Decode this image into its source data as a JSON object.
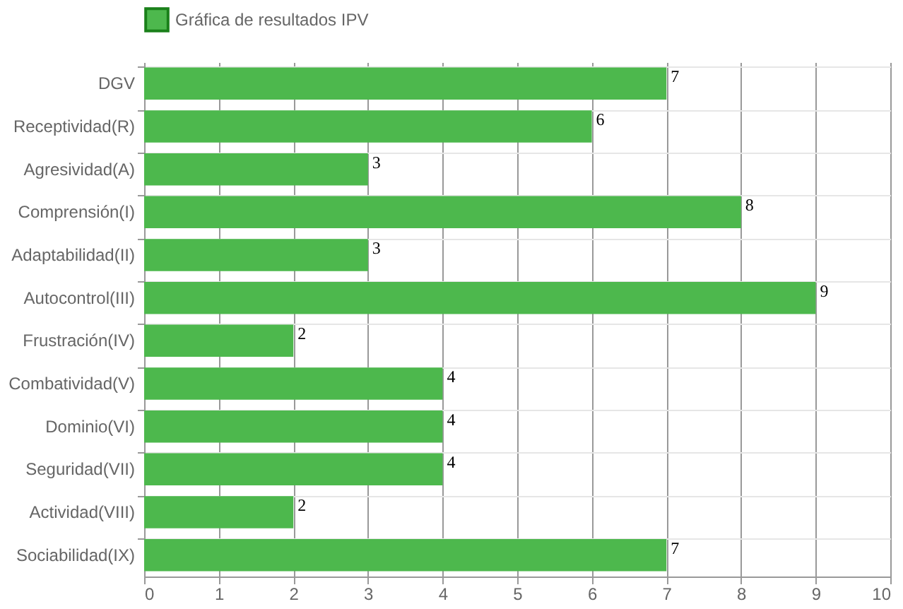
{
  "chart_data": {
    "type": "bar",
    "orientation": "horizontal",
    "categories": [
      "DGV",
      "Receptividad(R)",
      "Agresividad(A)",
      "Comprensión(I)",
      "Adaptabilidad(II)",
      "Autocontrol(III)",
      "Frustración(IV)",
      "Combatividad(V)",
      "Dominio(VI)",
      "Seguridad(VII)",
      "Actividad(VIII)",
      "Sociabilidad(IX)"
    ],
    "series": [
      {
        "name": "Gráfica de resultados IPV",
        "color": "#4db84d",
        "values": [
          7,
          6,
          3,
          8,
          3,
          9,
          2,
          4,
          4,
          4,
          2,
          7
        ]
      }
    ],
    "xlim": [
      0,
      10
    ],
    "xticks": [
      0,
      1,
      2,
      3,
      4,
      5,
      6,
      7,
      8,
      9,
      10
    ],
    "grid": true,
    "legend": "top",
    "data_labels": true
  }
}
